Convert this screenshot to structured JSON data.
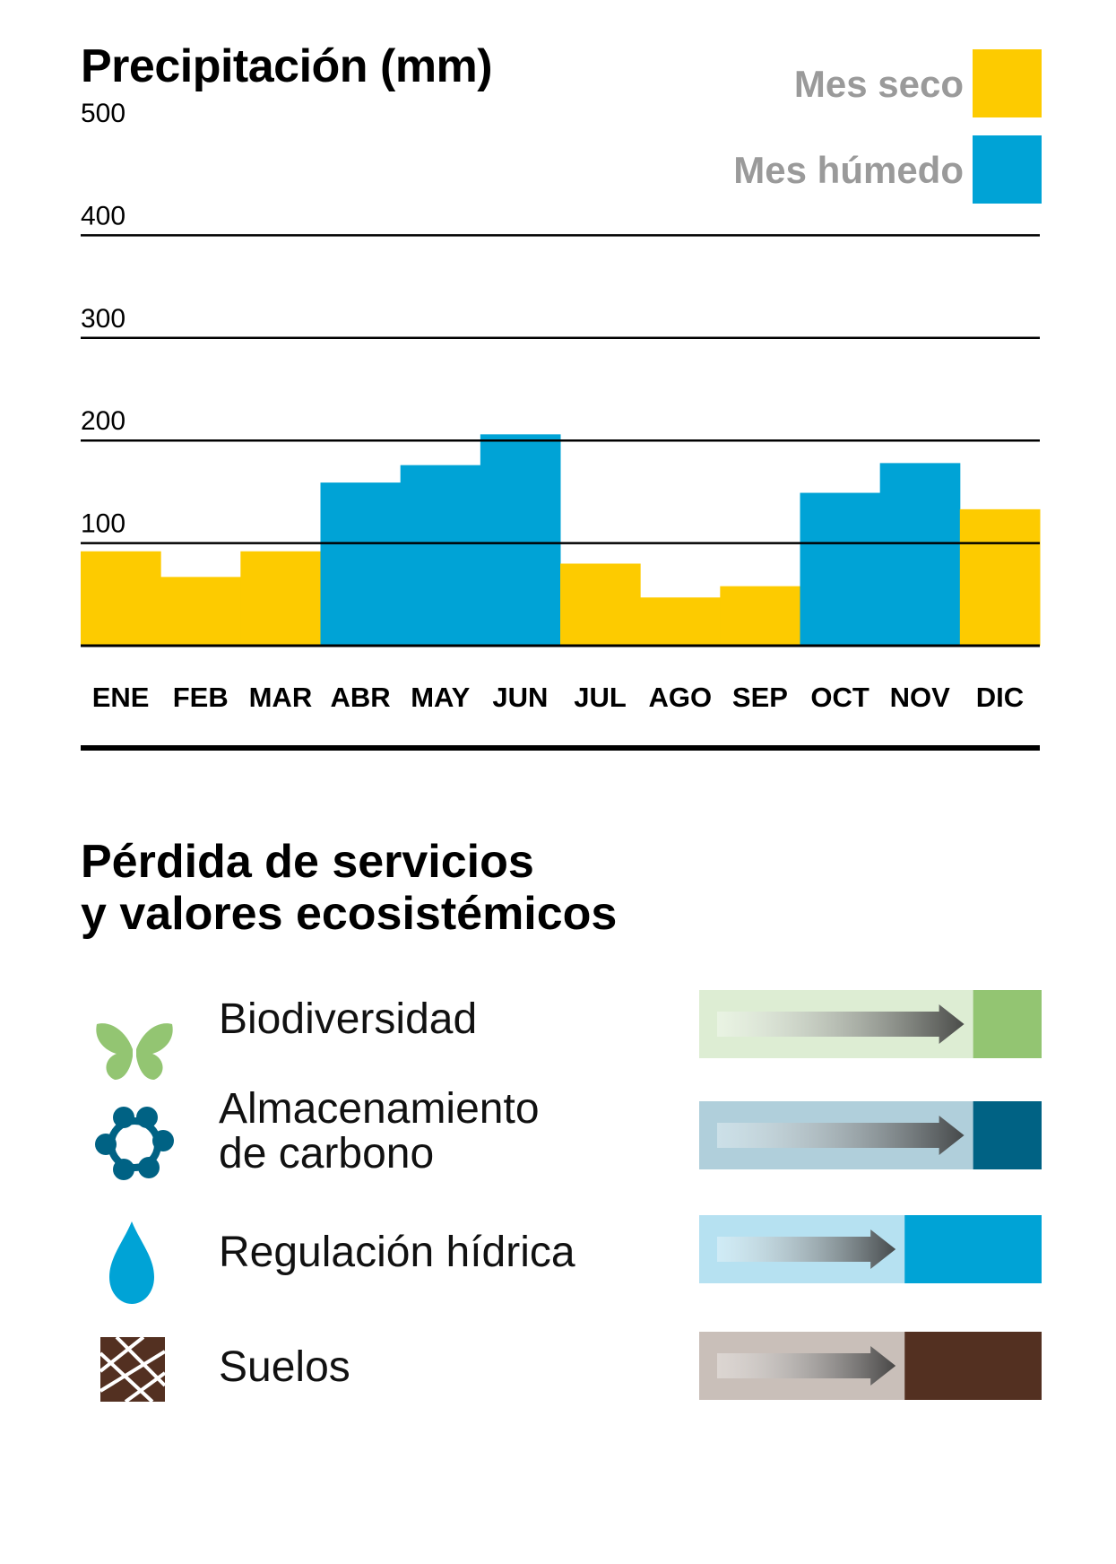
{
  "chart_data": {
    "type": "bar",
    "title": "Precipitación (mm)",
    "categories": [
      "ENE",
      "FEB",
      "MAR",
      "ABR",
      "MAY",
      "JUN",
      "JUL",
      "AGO",
      "SEP",
      "OCT",
      "NOV",
      "DIC"
    ],
    "values": [
      92,
      67,
      92,
      159,
      176,
      206,
      80,
      47,
      58,
      149,
      178,
      133
    ],
    "category_type": [
      "seco",
      "seco",
      "seco",
      "húmedo",
      "húmedo",
      "húmedo",
      "seco",
      "seco",
      "seco",
      "húmedo",
      "húmedo",
      "seco"
    ],
    "ylim": [
      0,
      500
    ],
    "yticks": [
      100,
      200,
      300,
      400,
      500
    ],
    "grid": true,
    "legend_position": "top-right",
    "legend": [
      {
        "label": "Mes seco",
        "color": "#FDCB00"
      },
      {
        "label": "Mes húmedo",
        "color": "#00A3D6"
      }
    ],
    "colors": {
      "seco": "#FDCB00",
      "húmedo": "#00A3D6"
    }
  },
  "services": {
    "title_line1": "Pérdida de servicios",
    "title_line2": "y valores ecosistémicos",
    "items": [
      {
        "label_line1": "Biodiversidad",
        "label_line2": "",
        "icon": "butterfly-icon",
        "light": "#DDEDD3",
        "dark": "#93C572",
        "loss": 0.2
      },
      {
        "label_line1": "Almacenamiento",
        "label_line2": "de carbono",
        "icon": "carbon-molecule-icon",
        "light": "#B0CFDB",
        "dark": "#006284",
        "loss": 0.2
      },
      {
        "label_line1": "Regulación hídrica",
        "label_line2": "",
        "icon": "water-drop-icon",
        "light": "#B6E1F1",
        "dark": "#00A3D6",
        "loss": 0.4
      },
      {
        "label_line1": "Suelos",
        "label_line2": "",
        "icon": "soil-icon",
        "light": "#C9BFB9",
        "dark": "#533021",
        "loss": 0.4
      }
    ]
  }
}
